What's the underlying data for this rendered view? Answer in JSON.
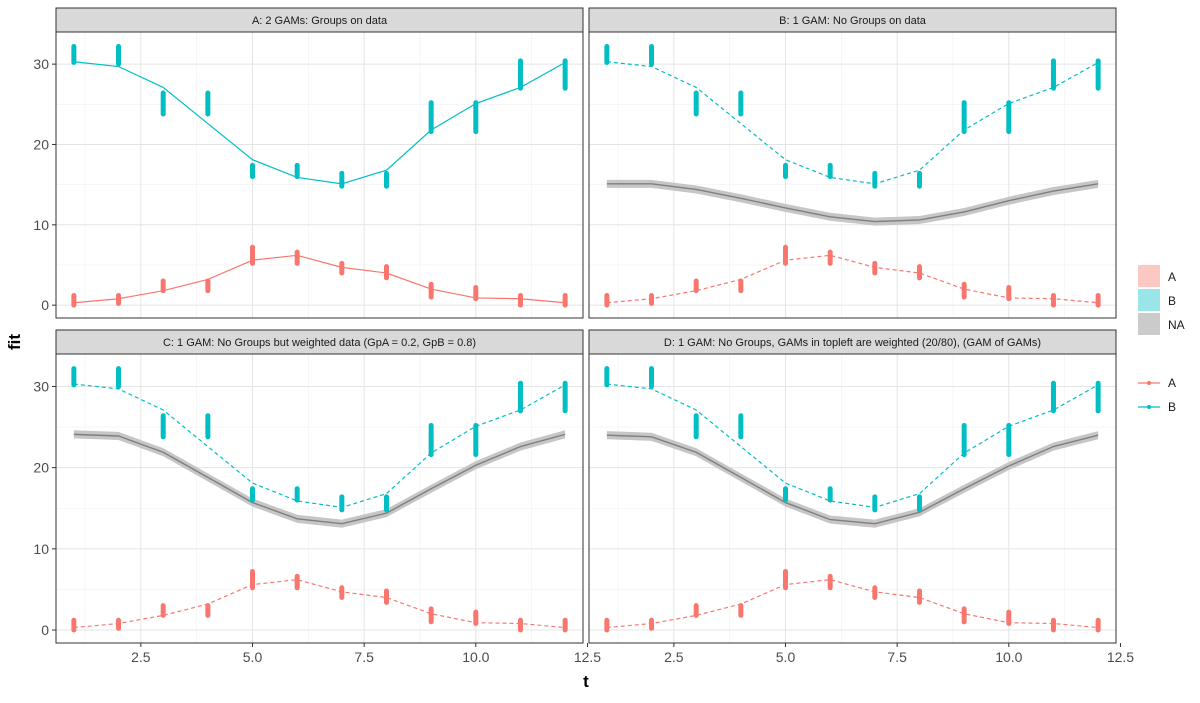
{
  "chart_data": {
    "type": "line",
    "xlabel": "t",
    "ylabel": "fit",
    "xlim": [
      0.6,
      12.4
    ],
    "ylim": [
      -1.6,
      34
    ],
    "x_ticks": [
      2.5,
      5.0,
      7.5,
      10.0,
      12.5
    ],
    "x_tick_labels": [
      "2.5",
      "5.0",
      "7.5",
      "10.0",
      "12.5"
    ],
    "y_ticks": [
      0,
      10,
      20,
      30
    ],
    "y_tick_labels": [
      "0",
      "10",
      "20",
      "30"
    ],
    "grid": true,
    "legend_position": "right",
    "colors": {
      "A": "#f8766d",
      "B": "#00bfc4",
      "NA": "#7f7f7f",
      "NA_ribbon": "#c6c6c6"
    },
    "legend_fill": [
      {
        "label": "A",
        "color": "#fbc8c4"
      },
      {
        "label": "B",
        "color": "#99e5e7"
      },
      {
        "label": "NA",
        "color": "#cbcbcb"
      }
    ],
    "legend_line": [
      {
        "label": "A",
        "color": "#f8766d"
      },
      {
        "label": "B",
        "color": "#00bfc4"
      }
    ],
    "x": [
      1,
      2,
      3,
      4,
      5,
      6,
      7,
      8,
      9,
      10,
      11,
      12
    ],
    "data_points": {
      "A": [
        [
          0,
          1.2
        ],
        [
          0.2,
          1.2
        ],
        [
          1.8,
          3.0
        ],
        [
          1.8,
          3.0
        ],
        [
          5.2,
          7.2
        ],
        [
          5.2,
          6.6
        ],
        [
          4.0,
          5.2
        ],
        [
          3.4,
          4.8
        ],
        [
          1.0,
          2.6
        ],
        [
          0.8,
          2.2
        ],
        [
          0,
          1.2
        ],
        [
          0,
          1.2
        ]
      ],
      "B": [
        [
          30.2,
          32.2
        ],
        [
          30.0,
          32.2
        ],
        [
          23.8,
          26.4
        ],
        [
          23.8,
          26.4
        ],
        [
          16.0,
          17.4
        ],
        [
          16.0,
          17.4
        ],
        [
          14.8,
          16.4
        ],
        [
          14.8,
          16.4
        ],
        [
          21.6,
          25.2
        ],
        [
          21.6,
          25.2
        ],
        [
          27.0,
          30.4
        ],
        [
          27.0,
          30.4
        ]
      ]
    },
    "fit_A": [
      0.3,
      0.8,
      1.8,
      3.2,
      5.6,
      6.2,
      4.7,
      4.0,
      2.0,
      0.9,
      0.8,
      0.3
    ],
    "fit_B": [
      30.3,
      29.7,
      27.1,
      22.6,
      18.1,
      15.9,
      15.1,
      16.8,
      21.8,
      25.1,
      27.1,
      30.2
    ],
    "panels": [
      {
        "title": "A: 2 GAMs: Groups on data",
        "group_line_style": "solid",
        "pooled": null
      },
      {
        "title": "B: 1 GAM: No Groups on data",
        "group_line_style": "dashed",
        "pooled": [
          15.1,
          15.1,
          14.4,
          13.3,
          12.1,
          11.0,
          10.4,
          10.6,
          11.6,
          13.0,
          14.2,
          15.1
        ]
      },
      {
        "title": "C: 1 GAM: No Groups but weighted data (GpA = 0.2, GpB = 0.8)",
        "group_line_style": "dashed",
        "pooled": [
          24.1,
          23.9,
          21.9,
          18.8,
          15.7,
          13.7,
          13.1,
          14.4,
          17.4,
          20.3,
          22.6,
          24.1
        ]
      },
      {
        "title": "D: 1 GAM: No Groups, GAMs in topleft are weighted (20/80), (GAM of GAMs)",
        "group_line_style": "dashed",
        "pooled": [
          24.0,
          23.8,
          21.9,
          18.8,
          15.7,
          13.6,
          13.1,
          14.5,
          17.4,
          20.2,
          22.6,
          24.0
        ]
      }
    ]
  }
}
